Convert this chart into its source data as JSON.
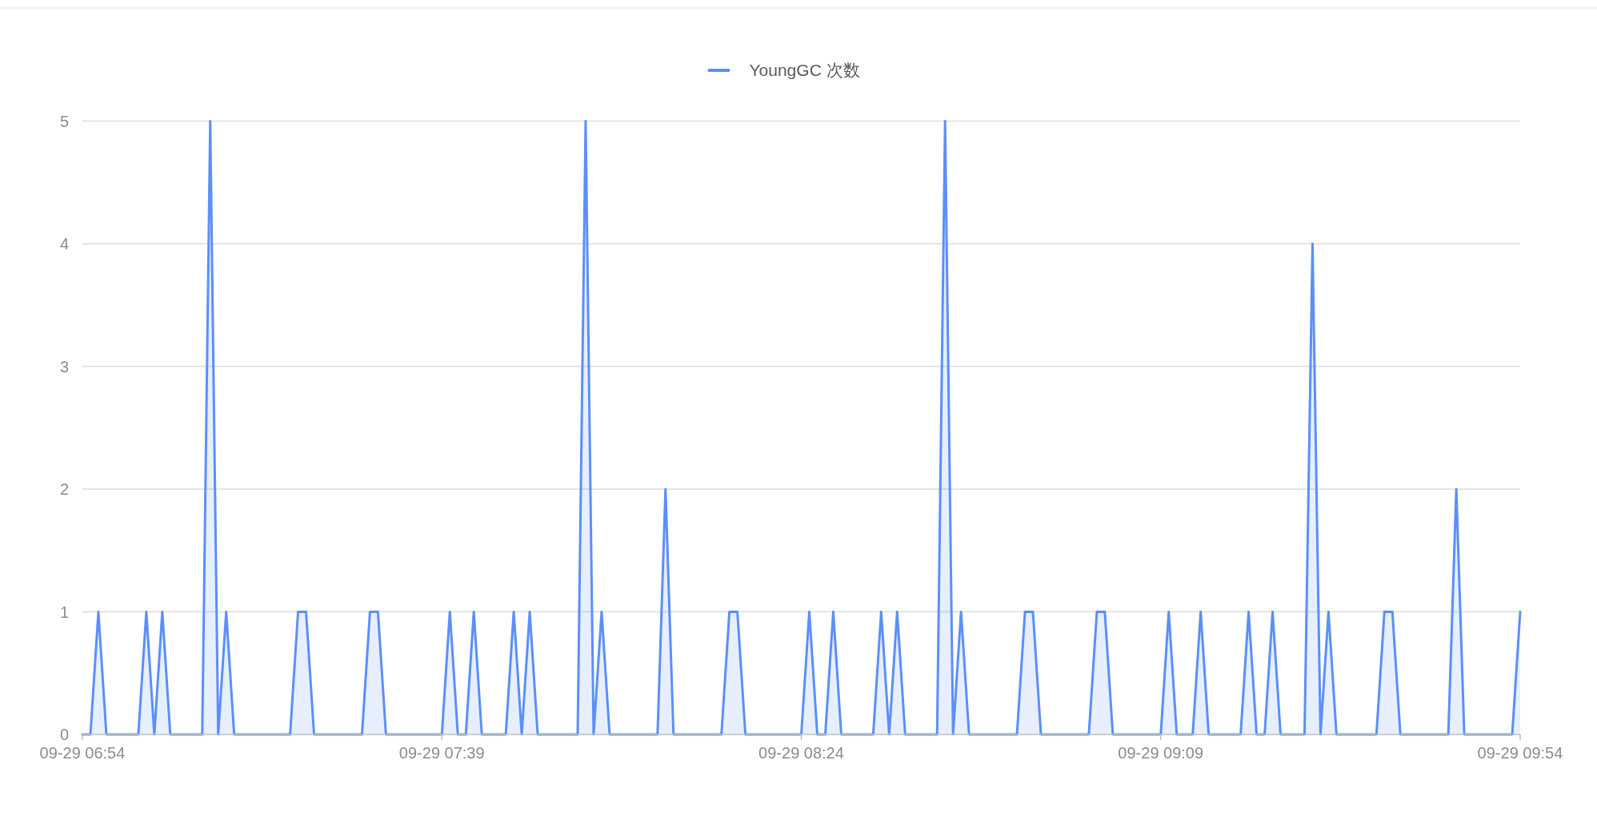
{
  "chart_data": {
    "type": "area",
    "categories": [
      "09-29 06:54",
      null,
      null,
      null,
      null,
      null,
      null,
      null,
      null,
      null,
      null,
      null,
      null,
      null,
      null,
      null,
      null,
      null,
      null,
      null,
      null,
      null,
      null,
      null,
      null,
      null,
      null,
      null,
      null,
      null,
      null,
      null,
      null,
      null,
      null,
      null,
      null,
      null,
      null,
      null,
      null,
      null,
      null,
      null,
      null,
      "09-29 07:39",
      null,
      null,
      null,
      null,
      null,
      null,
      null,
      null,
      null,
      null,
      null,
      null,
      null,
      null,
      null,
      null,
      null,
      null,
      null,
      null,
      null,
      null,
      null,
      null,
      null,
      null,
      null,
      null,
      null,
      null,
      null,
      null,
      null,
      null,
      null,
      null,
      null,
      null,
      null,
      null,
      null,
      null,
      null,
      null,
      "09-29 08:24",
      null,
      null,
      null,
      null,
      null,
      null,
      null,
      null,
      null,
      null,
      null,
      null,
      null,
      null,
      null,
      null,
      null,
      null,
      null,
      null,
      null,
      null,
      null,
      null,
      null,
      null,
      null,
      null,
      null,
      null,
      null,
      null,
      null,
      null,
      null,
      null,
      null,
      null,
      null,
      null,
      null,
      null,
      null,
      null,
      "09-29 09:09",
      null,
      null,
      null,
      null,
      null,
      null,
      null,
      null,
      null,
      null,
      null,
      null,
      null,
      null,
      null,
      null,
      null,
      null,
      null,
      null,
      null,
      null,
      null,
      null,
      null,
      null,
      null,
      null,
      null,
      null,
      null,
      null,
      null,
      null,
      null,
      null,
      null,
      null,
      null,
      null,
      null,
      null,
      null,
      null,
      "09-29 09:54"
    ],
    "series": [
      {
        "name": "YoungGC 次数",
        "color": "#5b8ff9",
        "values": [
          0,
          0,
          1,
          0,
          0,
          0,
          0,
          0,
          1,
          0,
          1,
          0,
          0,
          0,
          0,
          0,
          5,
          0,
          1,
          0,
          0,
          0,
          0,
          0,
          0,
          0,
          0,
          1,
          1,
          0,
          0,
          0,
          0,
          0,
          0,
          0,
          1,
          1,
          0,
          0,
          0,
          0,
          0,
          0,
          0,
          0,
          1,
          0,
          0,
          1,
          0,
          0,
          0,
          0,
          1,
          0,
          1,
          0,
          0,
          0,
          0,
          0,
          0,
          5,
          0,
          1,
          0,
          0,
          0,
          0,
          0,
          0,
          0,
          2,
          0,
          0,
          0,
          0,
          0,
          0,
          0,
          1,
          1,
          0,
          0,
          0,
          0,
          0,
          0,
          0,
          0,
          1,
          0,
          0,
          1,
          0,
          0,
          0,
          0,
          0,
          1,
          0,
          1,
          0,
          0,
          0,
          0,
          0,
          5,
          0,
          1,
          0,
          0,
          0,
          0,
          0,
          0,
          0,
          1,
          1,
          0,
          0,
          0,
          0,
          0,
          0,
          0,
          1,
          1,
          0,
          0,
          0,
          0,
          0,
          0,
          0,
          1,
          0,
          0,
          0,
          1,
          0,
          0,
          0,
          0,
          0,
          1,
          0,
          0,
          1,
          0,
          0,
          0,
          0,
          4,
          0,
          1,
          0,
          0,
          0,
          0,
          0,
          0,
          1,
          1,
          0,
          0,
          0,
          0,
          0,
          0,
          0,
          2,
          0,
          0,
          0,
          0,
          0,
          0,
          0,
          1
        ]
      }
    ],
    "ylim": [
      0,
      5
    ],
    "yticks": [
      0,
      1,
      2,
      3,
      4,
      5
    ],
    "grid": "y",
    "legend": "top"
  }
}
